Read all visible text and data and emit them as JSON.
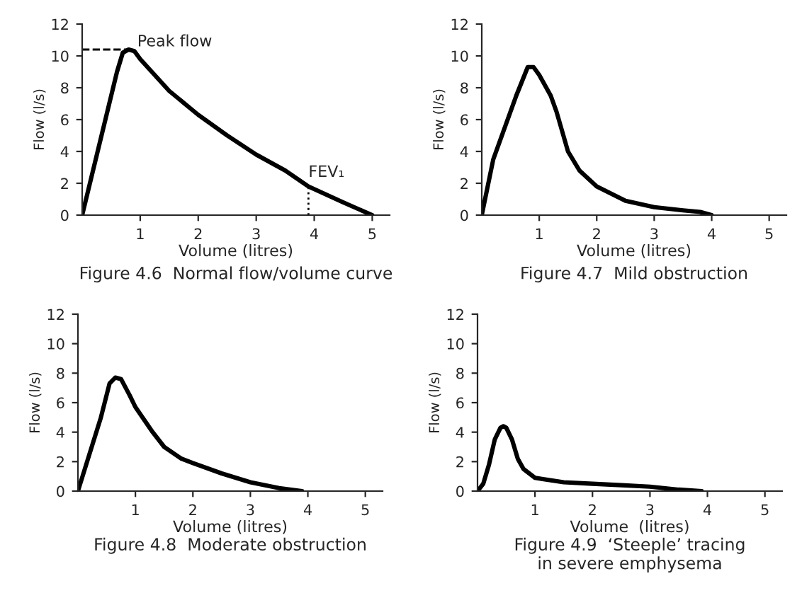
{
  "chart_data": [
    {
      "type": "line",
      "title": "Figure 4.6  Normal flow/volume curve",
      "xlabel": "Volume (litres)",
      "ylabel": "Flow (l/s)",
      "xlim": [
        0,
        5.3
      ],
      "xticks": [
        1,
        2,
        3,
        4,
        5
      ],
      "ylim": [
        0,
        12
      ],
      "yticks": [
        0,
        2,
        4,
        6,
        8,
        10,
        12
      ],
      "grid": false,
      "legend": false,
      "series": [
        {
          "color": "#000000",
          "x": [
            0,
            0.2,
            0.4,
            0.6,
            0.7,
            0.8,
            0.9,
            1.0,
            1.25,
            1.5,
            2,
            2.5,
            3,
            3.5,
            3.9,
            4.5,
            5
          ],
          "values": [
            0,
            3,
            6,
            9,
            10.2,
            10.4,
            10.3,
            9.8,
            8.8,
            7.8,
            6.3,
            5,
            3.8,
            2.8,
            1.8,
            0.8,
            0
          ]
        }
      ],
      "ref_lines": [
        {
          "axis": "y",
          "value": 10.4,
          "label": "Peak flow",
          "line_style": "dashed"
        },
        {
          "axis": "x",
          "value": 3.9,
          "label": "FEV₁",
          "line_style": "dotted"
        }
      ]
    },
    {
      "type": "line",
      "title": "Figure 4.7  Mild obstruction",
      "xlabel": "Volume (litres)",
      "ylabel": "Flow (l/s)",
      "xlim": [
        0,
        5.3
      ],
      "xticks": [
        1,
        2,
        3,
        4,
        5
      ],
      "ylim": [
        0,
        12
      ],
      "yticks": [
        0,
        2,
        4,
        6,
        8,
        10,
        12
      ],
      "grid": false,
      "legend": false,
      "series": [
        {
          "color": "#000000",
          "x": [
            0,
            0.2,
            0.4,
            0.6,
            0.8,
            0.9,
            1.0,
            1.2,
            1.3,
            1.5,
            1.7,
            2,
            2.5,
            3,
            3.5,
            3.8,
            4
          ],
          "values": [
            0,
            3.5,
            5.5,
            7.5,
            9.3,
            9.3,
            8.8,
            7.5,
            6.5,
            4,
            2.8,
            1.8,
            0.9,
            0.5,
            0.3,
            0.2,
            0
          ]
        }
      ]
    },
    {
      "type": "line",
      "title": "Figure 4.8  Moderate obstruction",
      "xlabel": "Volume (litres)",
      "ylabel": "Flow (l/s)",
      "xlim": [
        0,
        5.3
      ],
      "xticks": [
        1,
        2,
        3,
        4,
        5
      ],
      "ylim": [
        0,
        12
      ],
      "yticks": [
        0,
        2,
        4,
        6,
        8,
        10,
        12
      ],
      "grid": false,
      "legend": false,
      "series": [
        {
          "color": "#000000",
          "x": [
            0,
            0.2,
            0.4,
            0.55,
            0.65,
            0.75,
            0.9,
            1.0,
            1.3,
            1.5,
            1.8,
            2,
            2.5,
            3,
            3.5,
            3.9
          ],
          "values": [
            0,
            2.5,
            5,
            7.3,
            7.7,
            7.6,
            6.5,
            5.7,
            4,
            3,
            2.2,
            1.9,
            1.2,
            0.6,
            0.2,
            0
          ]
        }
      ]
    },
    {
      "type": "line",
      "title": "Figure 4.9  ‘Steeple’ tracing\nin severe emphysema",
      "xlabel": "Volume  (litres)",
      "ylabel": "Flow (l/s)",
      "xlim": [
        0,
        5.3
      ],
      "xticks": [
        1,
        2,
        3,
        4,
        5
      ],
      "ylim": [
        0,
        12
      ],
      "yticks": [
        0,
        2,
        4,
        6,
        8,
        10,
        12
      ],
      "grid": false,
      "legend": false,
      "series": [
        {
          "color": "#000000",
          "x": [
            0,
            0.1,
            0.2,
            0.3,
            0.4,
            0.45,
            0.5,
            0.6,
            0.7,
            0.8,
            1,
            1.5,
            2,
            2.5,
            3,
            3.5,
            3.9
          ],
          "values": [
            0,
            0.5,
            1.8,
            3.5,
            4.3,
            4.4,
            4.3,
            3.5,
            2.2,
            1.5,
            0.9,
            0.6,
            0.5,
            0.4,
            0.3,
            0.1,
            0
          ]
        }
      ]
    }
  ]
}
